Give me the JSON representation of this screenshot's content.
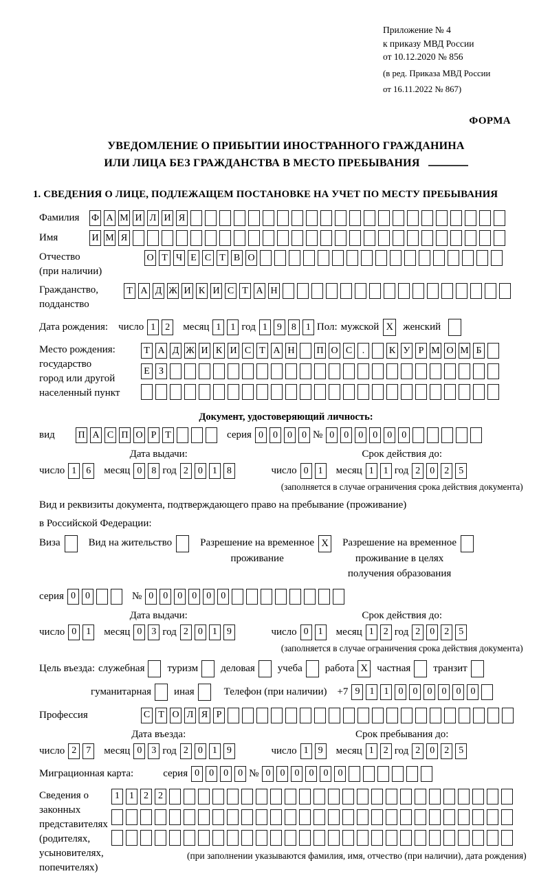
{
  "colors": {
    "ink": "#000000",
    "box_border": "#1a1a1a",
    "background": "#ffffff"
  },
  "header": {
    "ref_lines": [
      "Приложение № 4",
      "к приказу МВД России",
      "от 10.12.2020 № 856"
    ],
    "ref_lines_small": [
      "(в ред. Приказа МВД России",
      "от 16.11.2022 № 867)"
    ],
    "form_label": "ФОРМА"
  },
  "title": {
    "line1": "УВЕДОМЛЕНИЕ О ПРИБЫТИИ ИНОСТРАННОГО ГРАЖДАНИНА",
    "line2": "ИЛИ ЛИЦА БЕЗ ГРАЖДАНСТВА В МЕСТО ПРЕБЫВАНИЯ"
  },
  "section1_heading": "1. СВЕДЕНИЯ О ЛИЦЕ, ПОДЛЕЖАЩЕМ ПОСТАНОВКЕ НА УЧЕТ ПО МЕСТУ ПРЕБЫВАНИЯ",
  "fields": {
    "surname": {
      "label": "Фамилия",
      "cells": {
        "v": "ФАМИЛИЯ",
        "n": 29
      }
    },
    "given_name": {
      "label": "Имя",
      "cells": {
        "v": "ИМЯ",
        "n": 29
      }
    },
    "patronymic": {
      "label1": "Отчество",
      "label2": "(при наличии)",
      "cells": {
        "v": "ОТЧЕСТВО",
        "n": 25
      }
    },
    "citizenship": {
      "label1": "Гражданство,",
      "label2": "подданство",
      "cells": {
        "v": "ТАДЖИКИСТАН",
        "n": 27
      }
    },
    "birth_date": {
      "label": "Дата рождения:",
      "day_label": "число",
      "day": {
        "v": "12",
        "n": 2
      },
      "month_label": "месяц",
      "month": {
        "v": "11",
        "n": 2
      },
      "year_label": "год",
      "year": {
        "v": "1981",
        "n": 4
      }
    },
    "sex": {
      "label": "Пол:",
      "male_label": "мужской",
      "male": "X",
      "female_label": "женский",
      "female": ""
    },
    "birth_place": {
      "label_lines": [
        "Место рождения:",
        "государство",
        "город или другой",
        "населенный пункт"
      ],
      "rows": [
        {
          "v": "ТАДЖИКИСТАН ПОС. КУРМОМБ",
          "n": 25
        },
        {
          "v": "ЕЗ",
          "n": 25
        },
        {
          "v": "",
          "n": 25
        }
      ]
    },
    "id_doc": {
      "heading": "Документ, удостоверяющий личность:",
      "kind_label": "вид",
      "kind": {
        "v": "ПАСПОРТ",
        "n": 10
      },
      "series_label": "серия",
      "series": {
        "v": "0000",
        "n": 4
      },
      "number_label": "№",
      "number": {
        "v": "000000",
        "n": 11
      }
    },
    "id_issue": {
      "title": "Дата выдачи:",
      "day_label": "число",
      "day": {
        "v": "16",
        "n": 2
      },
      "month_label": "месяц",
      "month": {
        "v": "08",
        "n": 2
      },
      "year_label": "год",
      "year": {
        "v": "2018",
        "n": 4
      }
    },
    "id_valid": {
      "title": "Срок действия до:",
      "day_label": "число",
      "day": {
        "v": "01",
        "n": 2
      },
      "month_label": "месяц",
      "month": {
        "v": "11",
        "n": 2
      },
      "year_label": "год",
      "year": {
        "v": "2025",
        "n": 4
      },
      "note": "(заполняется в случае ограничения срока действия документа)"
    },
    "res_doc": {
      "line1": "Вид и реквизиты документа, подтверждающего право на пребывание (проживание)",
      "line2": "в Российской Федерации:",
      "visa_label": "Виза",
      "visa": "",
      "residence_label": "Вид на жительство",
      "residence": "",
      "temp_label1": "Разрешение на временное",
      "temp_label2": "проживание",
      "temp": "X",
      "edu_label1": "Разрешение на временное",
      "edu_label2": "проживание в целях",
      "edu_label3": "получения образования",
      "edu": ""
    },
    "res_series": {
      "series_label": "серия",
      "series": {
        "v": "00",
        "n": 4
      },
      "number_label": "№",
      "number": {
        "v": "000000",
        "n": 14
      }
    },
    "res_issue": {
      "title": "Дата выдачи:",
      "day_label": "число",
      "day": {
        "v": "01",
        "n": 2
      },
      "month_label": "месяц",
      "month": {
        "v": "03",
        "n": 2
      },
      "year_label": "год",
      "year": {
        "v": "2019",
        "n": 4
      }
    },
    "res_valid": {
      "title": "Срок действия до:",
      "day_label": "число",
      "day": {
        "v": "01",
        "n": 2
      },
      "month_label": "месяц",
      "month": {
        "v": "12",
        "n": 2
      },
      "year_label": "год",
      "year": {
        "v": "2025",
        "n": 4
      },
      "note": "(заполняется в случае ограничения срока действия документа)"
    },
    "purpose": {
      "label": "Цель въезда:",
      "opt1_label": "служебная",
      "opt1": "",
      "opt2_label": "туризм",
      "opt2": "",
      "opt3_label": "деловая",
      "opt3": "",
      "opt4_label": "учеба",
      "opt4": "",
      "opt5_label": "работа",
      "opt5": "X",
      "opt6_label": "частная",
      "opt6": "",
      "opt7_label": "транзит",
      "opt7": "",
      "opt8_label": "гуманитарная",
      "opt8": "",
      "opt9_label": "иная",
      "opt9": ""
    },
    "phone": {
      "label": "Телефон (при наличии)",
      "prefix": "+7",
      "cells": {
        "v": "911000000",
        "n": 10
      }
    },
    "profession": {
      "label": "Профессия",
      "cells": {
        "v": "СТОЛЯР",
        "n": 26
      }
    },
    "entry_date": {
      "title": "Дата въезда:",
      "day_label": "число",
      "day": {
        "v": "27",
        "n": 2
      },
      "month_label": "месяц",
      "month": {
        "v": "03",
        "n": 2
      },
      "year_label": "год",
      "year": {
        "v": "2019",
        "n": 4
      }
    },
    "stay_until": {
      "title": "Срок пребывания до:",
      "day_label": "число",
      "day": {
        "v": "19",
        "n": 2
      },
      "month_label": "месяц",
      "month": {
        "v": "12",
        "n": 2
      },
      "year_label": "год",
      "year": {
        "v": "2025",
        "n": 4
      }
    },
    "migration_card": {
      "label": "Миграционная карта:",
      "series_label": "серия",
      "series": {
        "v": "0000",
        "n": 4
      },
      "number_label": "№",
      "number": {
        "v": "000000",
        "n": 12
      }
    },
    "legal_reps": {
      "label_lines": [
        "Сведения о",
        "законных",
        "представителях",
        "(родителях,",
        "усыновителях,",
        "попечителях)"
      ],
      "rows": [
        {
          "v": "1122",
          "n": 28
        },
        {
          "v": "",
          "n": 28
        },
        {
          "v": "",
          "n": 28
        }
      ],
      "note": "(при заполнении указываются фамилия, имя, отчество (при наличии), дата рождения)"
    }
  }
}
